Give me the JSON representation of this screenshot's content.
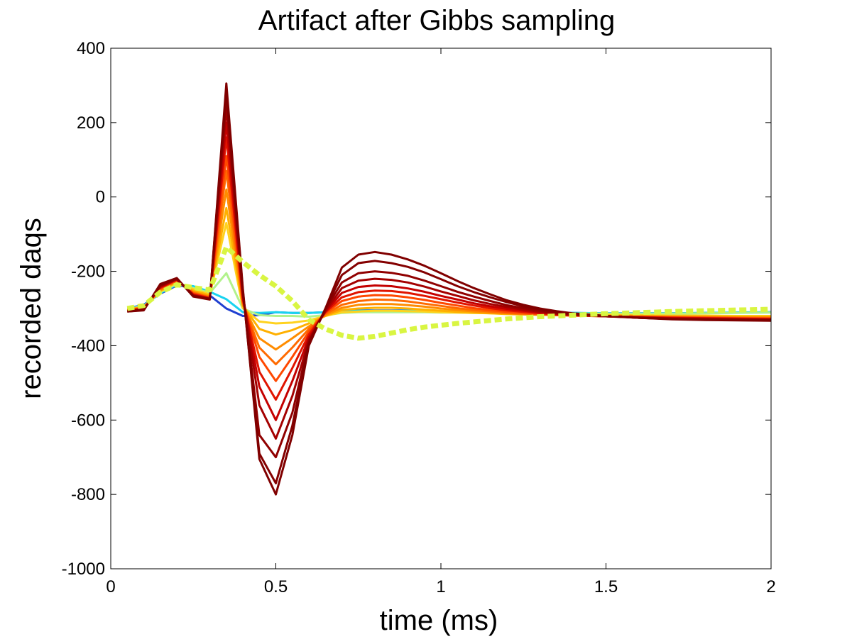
{
  "chart_data": {
    "type": "line",
    "title": "Artifact after Gibbs sampling",
    "xlabel": "time (ms)",
    "ylabel": "recorded daqs",
    "xlim": [
      0,
      2
    ],
    "ylim": [
      -1000,
      400
    ],
    "x_ticks": [
      "0",
      "0.5",
      "1",
      "1.5",
      "2"
    ],
    "y_ticks": [
      "400",
      "200",
      "0",
      "-200",
      "-400",
      "-600",
      "-800",
      "-1000"
    ],
    "grid": false,
    "legend": "none",
    "x": [
      0.05,
      0.1,
      0.15,
      0.2,
      0.25,
      0.3,
      0.35,
      0.4,
      0.45,
      0.5,
      0.55,
      0.6,
      0.65,
      0.7,
      0.75,
      0.8,
      0.85,
      0.9,
      0.95,
      1.0,
      1.05,
      1.1,
      1.15,
      1.2,
      1.25,
      1.3,
      1.35,
      1.4,
      1.5,
      1.6,
      1.7,
      1.8,
      1.9,
      2.0
    ],
    "series_family": {
      "description_colormap": "jet",
      "count": 26,
      "colors": [
        "#1f3fd0",
        "#0078ff",
        "#00b0ff",
        "#19d3f0",
        "#66e8c8",
        "#b2f28c",
        "#e6f04a",
        "#ffd21e",
        "#ffb000",
        "#ff8c00",
        "#ff6a00",
        "#ff4800",
        "#f22800",
        "#e01400",
        "#d00000",
        "#c40000",
        "#b80000",
        "#ac0000",
        "#a40000",
        "#9c0000",
        "#960000",
        "#900000",
        "#8c0000",
        "#880000",
        "#840000",
        "#800000"
      ]
    },
    "series": [
      {
        "color": "#1f3fd0",
        "dash": false,
        "values": [
          -300,
          -290,
          -260,
          -238,
          -243,
          -265,
          -300,
          -320,
          -318,
          -310,
          -312,
          -312,
          -310,
          -307,
          -305,
          -305,
          -305,
          -305,
          -306,
          -307,
          -308,
          -309,
          -310,
          -310,
          -311,
          -312,
          -312,
          -312,
          -313,
          -313,
          -313,
          -312,
          -311,
          -310
        ]
      },
      {
        "color": "#19d3f0",
        "dash": false,
        "values": [
          -300,
          -292,
          -258,
          -236,
          -240,
          -255,
          -275,
          -310,
          -312,
          -310,
          -312,
          -312,
          -310,
          -308,
          -306,
          -306,
          -306,
          -306,
          -306,
          -307,
          -308,
          -309,
          -310,
          -310,
          -311,
          -312,
          -312,
          -312,
          -313,
          -313,
          -313,
          -312,
          -311,
          -310
        ]
      },
      {
        "color": "#b2f28c",
        "dash": false,
        "values": [
          -301,
          -294,
          -256,
          -234,
          -245,
          -258,
          -205,
          -300,
          -318,
          -320,
          -320,
          -322,
          -318,
          -312,
          -310,
          -310,
          -310,
          -310,
          -310,
          -311,
          -311,
          -312,
          -312,
          -313,
          -313,
          -313,
          -314,
          -314,
          -314,
          -314,
          -314,
          -313,
          -312,
          -311
        ]
      },
      {
        "color": "#ffd21e",
        "dash": false,
        "values": [
          -302,
          -295,
          -254,
          -230,
          -248,
          -262,
          -70,
          -298,
          -335,
          -340,
          -338,
          -332,
          -320,
          -310,
          -308,
          -306,
          -306,
          -307,
          -308,
          -310,
          -311,
          -312,
          -313,
          -314,
          -315,
          -316,
          -316,
          -316,
          -317,
          -318,
          -319,
          -319,
          -320,
          -320
        ]
      },
      {
        "color": "#ffb000",
        "dash": false,
        "values": [
          -303,
          -296,
          -252,
          -228,
          -252,
          -265,
          -30,
          -292,
          -355,
          -370,
          -358,
          -340,
          -320,
          -304,
          -300,
          -298,
          -298,
          -300,
          -303,
          -306,
          -309,
          -311,
          -313,
          -315,
          -316,
          -317,
          -318,
          -318,
          -319,
          -320,
          -321,
          -321,
          -322,
          -322
        ]
      },
      {
        "color": "#ff8c00",
        "dash": false,
        "values": [
          -304,
          -297,
          -250,
          -226,
          -256,
          -268,
          20,
          -290,
          -380,
          -410,
          -380,
          -348,
          -318,
          -298,
          -290,
          -288,
          -288,
          -291,
          -295,
          -300,
          -304,
          -308,
          -311,
          -313,
          -315,
          -317,
          -318,
          -319,
          -320,
          -321,
          -322,
          -323,
          -324,
          -324
        ]
      },
      {
        "color": "#ff6a00",
        "dash": false,
        "values": [
          -305,
          -298,
          -248,
          -225,
          -258,
          -270,
          70,
          -285,
          -405,
          -450,
          -405,
          -355,
          -315,
          -290,
          -280,
          -276,
          -277,
          -281,
          -287,
          -293,
          -299,
          -304,
          -308,
          -312,
          -314,
          -316,
          -318,
          -319,
          -321,
          -322,
          -323,
          -324,
          -325,
          -326
        ]
      },
      {
        "color": "#ff4800",
        "dash": false,
        "values": [
          -305,
          -299,
          -246,
          -224,
          -260,
          -271,
          110,
          -280,
          -430,
          -495,
          -430,
          -362,
          -312,
          -280,
          -268,
          -264,
          -265,
          -270,
          -277,
          -285,
          -292,
          -299,
          -304,
          -309,
          -312,
          -315,
          -317,
          -319,
          -321,
          -323,
          -324,
          -325,
          -326,
          -327
        ]
      },
      {
        "color": "#e01400",
        "dash": false,
        "values": [
          -306,
          -300,
          -244,
          -222,
          -262,
          -272,
          160,
          -275,
          -470,
          -545,
          -460,
          -370,
          -310,
          -270,
          -256,
          -252,
          -253,
          -258,
          -266,
          -275,
          -284,
          -292,
          -299,
          -305,
          -309,
          -313,
          -316,
          -318,
          -321,
          -323,
          -325,
          -326,
          -327,
          -328
        ]
      },
      {
        "color": "#c40000",
        "dash": false,
        "values": [
          -306,
          -301,
          -242,
          -222,
          -264,
          -273,
          200,
          -268,
          -510,
          -600,
          -495,
          -378,
          -308,
          -258,
          -242,
          -238,
          -240,
          -246,
          -255,
          -266,
          -276,
          -286,
          -294,
          -301,
          -306,
          -311,
          -315,
          -318,
          -321,
          -324,
          -326,
          -327,
          -328,
          -329
        ]
      },
      {
        "color": "#a40000",
        "dash": false,
        "values": [
          -307,
          -302,
          -240,
          -221,
          -265,
          -274,
          240,
          -262,
          -560,
          -650,
          -535,
          -385,
          -306,
          -245,
          -225,
          -220,
          -223,
          -230,
          -241,
          -254,
          -266,
          -278,
          -288,
          -296,
          -303,
          -309,
          -314,
          -317,
          -321,
          -324,
          -327,
          -328,
          -329,
          -330
        ]
      },
      {
        "color": "#900000",
        "dash": false,
        "values": [
          -307,
          -303,
          -238,
          -220,
          -266,
          -274,
          270,
          -256,
          -640,
          -700,
          -580,
          -390,
          -302,
          -230,
          -205,
          -200,
          -204,
          -212,
          -225,
          -240,
          -255,
          -268,
          -280,
          -291,
          -299,
          -306,
          -312,
          -316,
          -321,
          -325,
          -328,
          -329,
          -330,
          -331
        ]
      },
      {
        "color": "#840000",
        "dash": false,
        "values": [
          -308,
          -304,
          -236,
          -219,
          -267,
          -275,
          290,
          -250,
          -690,
          -770,
          -615,
          -395,
          -300,
          -210,
          -178,
          -172,
          -178,
          -188,
          -203,
          -221,
          -240,
          -256,
          -270,
          -283,
          -294,
          -302,
          -309,
          -314,
          -320,
          -325,
          -328,
          -330,
          -331,
          -332
        ]
      },
      {
        "color": "#800000",
        "dash": false,
        "values": [
          -308,
          -305,
          -234,
          -218,
          -268,
          -276,
          305,
          -245,
          -705,
          -800,
          -640,
          -400,
          -300,
          -190,
          -155,
          -148,
          -155,
          -168,
          -185,
          -205,
          -226,
          -245,
          -262,
          -278,
          -290,
          -300,
          -307,
          -313,
          -320,
          -325,
          -329,
          -331,
          -332,
          -333
        ]
      },
      {
        "color": "#d9f542",
        "dash": true,
        "values": [
          -300,
          -292,
          -256,
          -236,
          -244,
          -250,
          -135,
          -175,
          -210,
          -240,
          -280,
          -330,
          -355,
          -372,
          -380,
          -375,
          -366,
          -357,
          -350,
          -345,
          -340,
          -336,
          -332,
          -328,
          -325,
          -322,
          -320,
          -318,
          -314,
          -311,
          -308,
          -306,
          -304,
          -302
        ]
      }
    ]
  }
}
